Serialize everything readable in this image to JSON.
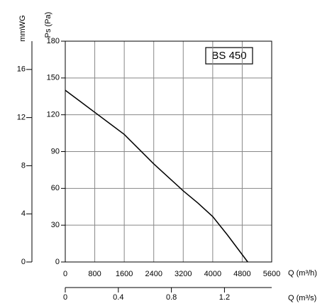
{
  "chart_data": {
    "type": "line",
    "label": "BS 450",
    "xlabel": "Q (m³/h)",
    "ylabel": "Ps (Pa)",
    "x": [
      0,
      400,
      800,
      1200,
      1600,
      2000,
      2400,
      2800,
      3200,
      3600,
      4000,
      4400,
      4950
    ],
    "series": [
      {
        "name": "BS 450",
        "color": "#000000",
        "values": [
          140,
          131,
          122,
          113,
          104,
          92,
          80,
          69,
          58,
          48,
          37,
          22,
          0
        ]
      }
    ],
    "xlim": [
      0,
      5600
    ],
    "xticks": [
      0,
      800,
      1600,
      2400,
      3200,
      4000,
      4800,
      5600
    ],
    "ylim": [
      0,
      180
    ],
    "yticks": [
      0,
      30,
      60,
      90,
      120,
      150,
      180
    ],
    "grid": true,
    "y2label": "mmWG",
    "y2lim": [
      0,
      18.35
    ],
    "y2ticks": [
      0,
      4,
      8,
      12,
      16
    ],
    "x2label": "Q (m³/s)",
    "x2lim": [
      0,
      1.556
    ],
    "x2ticks": [
      0,
      0.4,
      0.8,
      1.2
    ]
  }
}
